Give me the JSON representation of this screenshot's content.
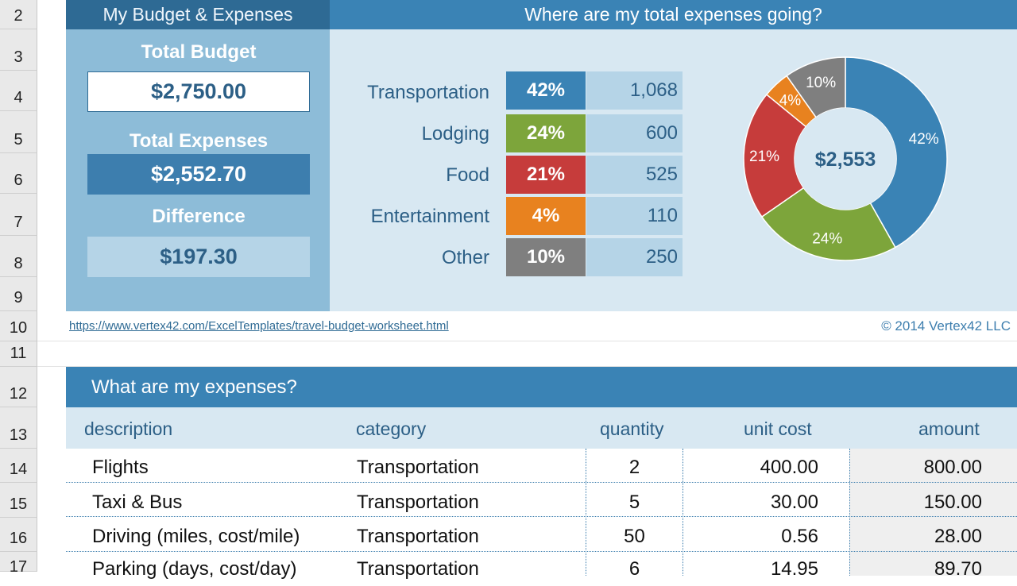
{
  "rows": [
    "2",
    "3",
    "4",
    "5",
    "6",
    "7",
    "8",
    "9",
    "10",
    "11",
    "12",
    "13",
    "14",
    "15",
    "16",
    "17"
  ],
  "budget_panel": {
    "title": "My Budget & Expenses",
    "total_budget_label": "Total Budget",
    "total_budget_value": "$2,750.00",
    "total_expenses_label": "Total Expenses",
    "total_expenses_value": "$2,552.70",
    "difference_label": "Difference",
    "difference_value": "$197.30"
  },
  "summary": {
    "title": "Where are my total expenses going?",
    "categories": [
      {
        "name": "Transportation",
        "pct": "42%",
        "amount": "1,068",
        "color": "#3a83b5"
      },
      {
        "name": "Lodging",
        "pct": "24%",
        "amount": "600",
        "color": "#7da53b"
      },
      {
        "name": "Food",
        "pct": "21%",
        "amount": "525",
        "color": "#c63c3b"
      },
      {
        "name": "Entertainment",
        "pct": "4%",
        "amount": "110",
        "color": "#e8821f"
      },
      {
        "name": "Other",
        "pct": "10%",
        "amount": "250",
        "color": "#7f7f7f"
      }
    ],
    "chart_total": "$2,553"
  },
  "chart_data": {
    "type": "pie",
    "categories": [
      "Transportation",
      "Lodging",
      "Food",
      "Entertainment",
      "Other"
    ],
    "values": [
      1068,
      600,
      525,
      110,
      250
    ],
    "labels": [
      "42%",
      "24%",
      "21%",
      "4%",
      "10%"
    ],
    "center_label": "$2,553",
    "colors": [
      "#3a83b5",
      "#7da53b",
      "#c63c3b",
      "#e8821f",
      "#7f7f7f"
    ]
  },
  "footer": {
    "link": "https://www.vertex42.com/ExcelTemplates/travel-budget-worksheet.html",
    "copyright": "© 2014 Vertex42 LLC"
  },
  "expenses": {
    "title": "What are my expenses?",
    "headers": {
      "description": "description",
      "category": "category",
      "quantity": "quantity",
      "unit_cost": "unit cost",
      "amount": "amount"
    },
    "items": [
      {
        "description": "Flights",
        "category": "Transportation",
        "quantity": "2",
        "unit_cost": "400.00",
        "amount": "800.00"
      },
      {
        "description": "Taxi & Bus",
        "category": "Transportation",
        "quantity": "5",
        "unit_cost": "30.00",
        "amount": "150.00"
      },
      {
        "description": "Driving (miles, cost/mile)",
        "category": "Transportation",
        "quantity": "50",
        "unit_cost": "0.56",
        "amount": "28.00"
      },
      {
        "description": "Parking (days, cost/day)",
        "category": "Transportation",
        "quantity": "6",
        "unit_cost": "14.95",
        "amount": "89.70"
      }
    ]
  }
}
